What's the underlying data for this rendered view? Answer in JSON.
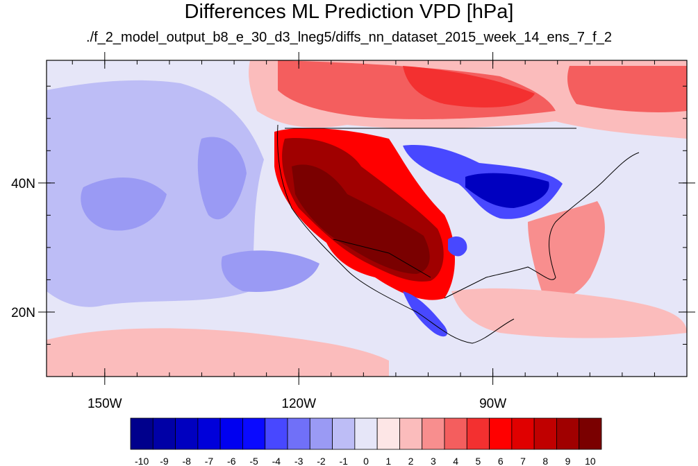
{
  "title": "Differences ML Prediction VPD [hPa]",
  "subtitle": "./f_2_model_output_b8_e_30_d3_lneg5/diffs_nn_dataset_2015_week_14_ens_7_f_2",
  "map": {
    "lon_range": [
      -159,
      -60
    ],
    "lat_range": [
      10,
      59
    ],
    "lat_ticks": [
      {
        "value": 40,
        "label": "40N"
      },
      {
        "value": 20,
        "label": "20N"
      }
    ],
    "lon_ticks": [
      {
        "value": -150,
        "label": "150W"
      },
      {
        "value": -120,
        "label": "120W"
      },
      {
        "value": -90,
        "label": "90W"
      }
    ]
  },
  "colorbar": {
    "labels": [
      "-10",
      "-9",
      "-8",
      "-7",
      "-6",
      "-5",
      "-4",
      "-3",
      "-2",
      "-1",
      "0",
      "1",
      "2",
      "3",
      "4",
      "5",
      "6",
      "7",
      "8",
      "9",
      "10"
    ],
    "colors": [
      "#00008c",
      "#0000a6",
      "#0000c0",
      "#0000da",
      "#0000f0",
      "#0a0aff",
      "#4848ff",
      "#7070f8",
      "#9a9af4",
      "#bdbdf6",
      "#e6e6f8",
      "#fde6e6",
      "#fbbcbc",
      "#f88e8e",
      "#f45e5e",
      "#f33030",
      "#ff0000",
      "#e00000",
      "#c00000",
      "#a00000",
      "#7a0000"
    ]
  },
  "regions": [
    {
      "name": "ocean-background",
      "color": "#e6e6f8"
    },
    {
      "name": "pacific-blue-1",
      "color": "#bdbdf6"
    },
    {
      "name": "pacific-blue-2",
      "color": "#9a9af4"
    },
    {
      "name": "canada-red-light",
      "color": "#fbbcbc"
    },
    {
      "name": "canada-red",
      "color": "#f45e5e"
    },
    {
      "name": "canada-red-strong",
      "color": "#f33030"
    },
    {
      "name": "west-us-red",
      "color": "#ff0000"
    },
    {
      "name": "west-us-dark",
      "color": "#a00000"
    },
    {
      "name": "southwest-darkest",
      "color": "#7a0000"
    },
    {
      "name": "midwest-blue",
      "color": "#4848ff"
    },
    {
      "name": "ohio-valley-dark-blue",
      "color": "#0000c0"
    },
    {
      "name": "mexico-blue",
      "color": "#4848ff"
    },
    {
      "name": "east-coast-red",
      "color": "#f88e8e"
    },
    {
      "name": "caribbean-pink",
      "color": "#fbbcbc"
    },
    {
      "name": "tropical-pacific-pink",
      "color": "#fbbcbc"
    }
  ]
}
